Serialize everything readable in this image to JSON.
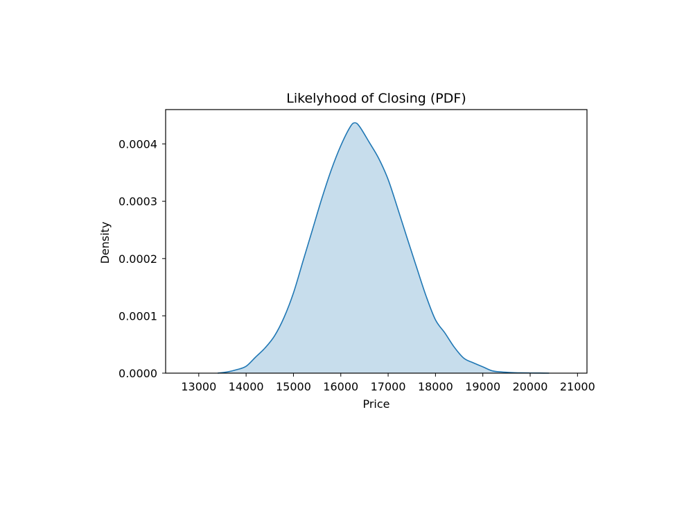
{
  "chart_data": {
    "type": "area",
    "title": "Likelyhood of Closing (PDF)",
    "xlabel": "Price",
    "ylabel": "Density",
    "xlim": [
      12300,
      21200
    ],
    "ylim": [
      0,
      0.00046
    ],
    "x_ticks": [
      {
        "value": 13000,
        "label": "13000"
      },
      {
        "value": 14000,
        "label": "14000"
      },
      {
        "value": 15000,
        "label": "15000"
      },
      {
        "value": 16000,
        "label": "16000"
      },
      {
        "value": 17000,
        "label": "17000"
      },
      {
        "value": 18000,
        "label": "18000"
      },
      {
        "value": 19000,
        "label": "19000"
      },
      {
        "value": 20000,
        "label": "20000"
      },
      {
        "value": 21000,
        "label": "21000"
      }
    ],
    "y_ticks": [
      {
        "value": 0.0,
        "label": "0.0000"
      },
      {
        "value": 0.0001,
        "label": "0.0001"
      },
      {
        "value": 0.0002,
        "label": "0.0002"
      },
      {
        "value": 0.0003,
        "label": "0.0003"
      },
      {
        "value": 0.0004,
        "label": "0.0004"
      }
    ],
    "grid": false,
    "line_color": "#1f77b4",
    "fill_color": "#1f77b4",
    "fill_opacity": 0.25,
    "series": [
      {
        "x": [
          13400,
          13600,
          13800,
          14000,
          14200,
          14400,
          14600,
          14800,
          15000,
          15200,
          15400,
          15600,
          15800,
          16000,
          16200,
          16300,
          16400,
          16600,
          16800,
          17000,
          17200,
          17400,
          17600,
          17800,
          18000,
          18200,
          18400,
          18600,
          18800,
          19000,
          19200,
          19400,
          19600,
          19800,
          20000,
          20200,
          20400
        ],
        "y": [
          0.0,
          2e-06,
          6e-06,
          1.2e-05,
          2.8e-05,
          4.4e-05,
          6.5e-05,
          9.7e-05,
          0.00014,
          0.000195,
          0.00025,
          0.000305,
          0.000355,
          0.000397,
          0.00043,
          0.000437,
          0.00043,
          0.000403,
          0.000375,
          0.000338,
          0.000288,
          0.000236,
          0.000185,
          0.000135,
          9.3e-05,
          7e-05,
          4.5e-05,
          2.6e-05,
          1.8e-05,
          1.1e-05,
          4e-06,
          2e-06,
          1e-06,
          5e-07,
          3e-07,
          2e-07,
          0.0
        ]
      }
    ]
  }
}
